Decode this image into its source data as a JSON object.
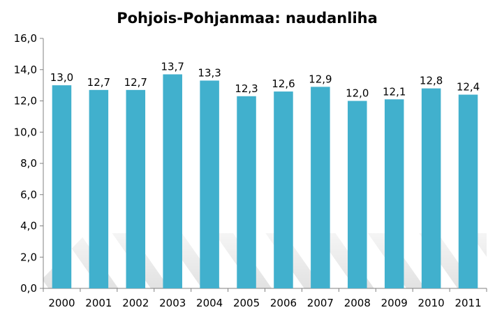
{
  "chart_data": {
    "type": "bar",
    "title": "Pohjois-Pohjanmaa: naudanliha",
    "categories": [
      "2000",
      "2001",
      "2002",
      "2003",
      "2004",
      "2005",
      "2006",
      "2007",
      "2008",
      "2009",
      "2010",
      "2011"
    ],
    "values": [
      13.0,
      12.7,
      12.7,
      13.7,
      13.3,
      12.3,
      12.6,
      12.9,
      12.0,
      12.1,
      12.8,
      12.4
    ],
    "data_labels": [
      "13,0",
      "12,7",
      "12,7",
      "13,7",
      "13,3",
      "12,3",
      "12,6",
      "12,9",
      "12,0",
      "12,1",
      "12,8",
      "12,4"
    ],
    "ylim": [
      0,
      16
    ],
    "yticks": [
      0,
      2,
      4,
      6,
      8,
      10,
      12,
      14,
      16
    ],
    "ytick_labels": [
      "0,0",
      "2,0",
      "4,0",
      "6,0",
      "8,0",
      "10,0",
      "12,0",
      "14,0",
      "16,0"
    ],
    "grid": false,
    "legend": "none",
    "colors": {
      "bar": "#41B0CD",
      "axis": "#808080",
      "floor": "#d9d9d9"
    }
  }
}
